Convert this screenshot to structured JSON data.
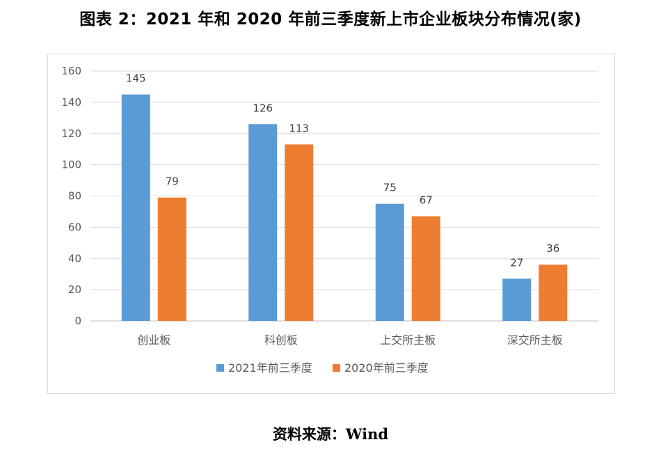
{
  "title": "图表 2：2021 年和 2020 年前三季度新上市企业板块分布情况(家)",
  "source": "资料来源：Wind",
  "chart_data": {
    "type": "bar",
    "categories": [
      "创业板",
      "科创板",
      "上交所主板",
      "深交所主板"
    ],
    "series": [
      {
        "name": "2021年前三季度",
        "values": [
          145,
          126,
          75,
          27
        ],
        "color": "#5b9bd5"
      },
      {
        "name": "2020年前三季度",
        "values": [
          79,
          113,
          67,
          36
        ],
        "color": "#ed7d31"
      }
    ],
    "ylim": [
      0,
      160
    ],
    "yticks": [
      0,
      20,
      40,
      60,
      80,
      100,
      120,
      140,
      160
    ],
    "grid": true,
    "legend": "bottom"
  }
}
